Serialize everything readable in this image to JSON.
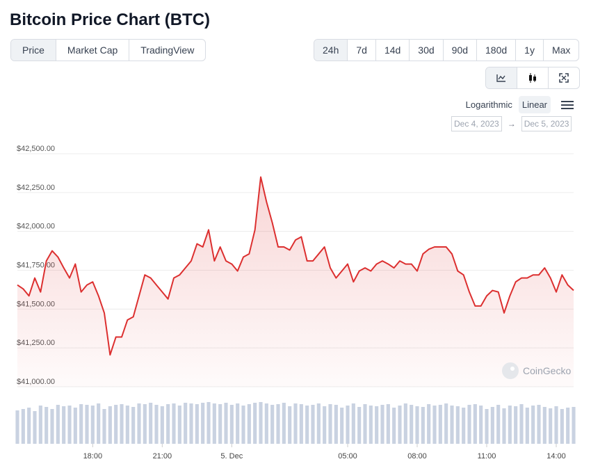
{
  "header": {
    "title": "Bitcoin Price Chart (BTC)"
  },
  "tabs": [
    "Price",
    "Market Cap",
    "TradingView"
  ],
  "active_tab": 0,
  "ranges": [
    "24h",
    "7d",
    "14d",
    "30d",
    "90d",
    "180d",
    "1y",
    "Max"
  ],
  "active_range": 0,
  "scale_options": [
    "Logarithmic",
    "Linear"
  ],
  "active_scale": 1,
  "date_range": {
    "from": "Dec 4, 2023",
    "separator": "→",
    "to": "Dec 5, 2023"
  },
  "watermark": "CoinGecko",
  "chart_data": {
    "type": "line",
    "color": "#dc2f2f",
    "x": [
      "2023-12-04T14:45",
      "2023-12-04T15:00",
      "2023-12-04T15:15",
      "2023-12-04T15:30",
      "2023-12-04T15:45",
      "2023-12-04T16:00",
      "2023-12-04T16:15",
      "2023-12-04T16:30",
      "2023-12-04T16:45",
      "2023-12-04T17:00",
      "2023-12-04T17:15",
      "2023-12-04T17:30",
      "2023-12-04T17:45",
      "2023-12-04T18:00",
      "2023-12-04T18:15",
      "2023-12-04T18:30",
      "2023-12-04T18:45",
      "2023-12-04T19:00",
      "2023-12-04T19:15",
      "2023-12-04T19:30",
      "2023-12-04T19:45",
      "2023-12-04T20:00",
      "2023-12-04T20:15",
      "2023-12-04T20:30",
      "2023-12-04T20:45",
      "2023-12-04T21:00",
      "2023-12-04T21:15",
      "2023-12-04T21:30",
      "2023-12-04T21:45",
      "2023-12-04T22:00",
      "2023-12-04T22:15",
      "2023-12-04T22:30",
      "2023-12-04T22:45",
      "2023-12-04T23:00",
      "2023-12-04T23:15",
      "2023-12-04T23:30",
      "2023-12-04T23:45",
      "2023-12-05T00:00",
      "2023-12-05T00:15",
      "2023-12-05T00:30",
      "2023-12-05T00:45",
      "2023-12-05T01:00",
      "2023-12-05T01:15",
      "2023-12-05T01:30",
      "2023-12-05T01:45",
      "2023-12-05T02:00",
      "2023-12-05T02:15",
      "2023-12-05T02:30",
      "2023-12-05T02:45",
      "2023-12-05T03:00",
      "2023-12-05T03:15",
      "2023-12-05T03:30",
      "2023-12-05T03:45",
      "2023-12-05T04:00",
      "2023-12-05T04:15",
      "2023-12-05T04:30",
      "2023-12-05T04:45",
      "2023-12-05T05:00",
      "2023-12-05T05:15",
      "2023-12-05T05:30",
      "2023-12-05T05:45",
      "2023-12-05T06:00",
      "2023-12-05T06:15",
      "2023-12-05T06:30",
      "2023-12-05T06:45",
      "2023-12-05T07:00",
      "2023-12-05T07:15",
      "2023-12-05T07:30",
      "2023-12-05T07:45",
      "2023-12-05T08:00",
      "2023-12-05T08:15",
      "2023-12-05T08:30",
      "2023-12-05T08:45",
      "2023-12-05T09:00",
      "2023-12-05T09:15",
      "2023-12-05T09:30",
      "2023-12-05T09:45",
      "2023-12-05T10:00",
      "2023-12-05T10:15",
      "2023-12-05T10:30",
      "2023-12-05T10:45",
      "2023-12-05T11:00",
      "2023-12-05T11:15",
      "2023-12-05T11:30",
      "2023-12-05T11:45",
      "2023-12-05T12:00",
      "2023-12-05T12:15",
      "2023-12-05T12:30",
      "2023-12-05T12:45",
      "2023-12-05T13:00",
      "2023-12-05T13:15",
      "2023-12-05T13:30",
      "2023-12-05T13:45",
      "2023-12-05T14:00",
      "2023-12-05T14:15",
      "2023-12-05T14:30",
      "2023-12-05T14:45"
    ],
    "values": [
      41655,
      41630,
      41585,
      41700,
      41610,
      41810,
      41875,
      41835,
      41765,
      41700,
      41790,
      41610,
      41655,
      41675,
      41585,
      41475,
      41205,
      41320,
      41320,
      41430,
      41450,
      41585,
      41720,
      41700,
      41655,
      41610,
      41565,
      41700,
      41720,
      41765,
      41810,
      41920,
      41900,
      42010,
      41810,
      41900,
      41810,
      41790,
      41745,
      41835,
      41855,
      42010,
      42350,
      42190,
      42055,
      41900,
      41900,
      41880,
      41945,
      41965,
      41810,
      41810,
      41855,
      41900,
      41765,
      41700,
      41745,
      41790,
      41675,
      41745,
      41765,
      41745,
      41790,
      41810,
      41790,
      41765,
      41810,
      41790,
      41790,
      41745,
      41855,
      41885,
      41900,
      41900,
      41900,
      41855,
      41745,
      41720,
      41610,
      41520,
      41520,
      41585,
      41620,
      41610,
      41475,
      41585,
      41675,
      41700,
      41700,
      41720,
      41720,
      41765,
      41700,
      41610,
      41720,
      41655,
      41620
    ],
    "volume": {
      "color": "#c9d2e1",
      "ylim": [
        0,
        65
      ],
      "values": [
        48,
        50,
        52,
        47,
        55,
        53,
        50,
        56,
        54,
        55,
        52,
        57,
        56,
        55,
        58,
        50,
        54,
        56,
        57,
        55,
        53,
        58,
        57,
        59,
        56,
        54,
        57,
        58,
        55,
        59,
        58,
        57,
        59,
        60,
        58,
        57,
        59,
        56,
        58,
        55,
        57,
        59,
        60,
        58,
        56,
        57,
        59,
        54,
        58,
        57,
        55,
        56,
        58,
        54,
        57,
        56,
        52,
        55,
        58,
        53,
        57,
        55,
        54,
        56,
        57,
        52,
        55,
        58,
        56,
        54,
        53,
        57,
        55,
        56,
        58,
        55,
        54,
        52,
        56,
        57,
        55,
        50,
        53,
        56,
        51,
        55,
        54,
        57,
        52,
        55,
        56,
        53,
        51,
        54,
        50,
        52,
        53
      ]
    },
    "xlim": [
      "2023-12-04T14:45",
      "2023-12-05T14:45"
    ],
    "xticks": [
      {
        "value": "2023-12-04T18:00",
        "label": "18:00"
      },
      {
        "value": "2023-12-04T21:00",
        "label": "21:00"
      },
      {
        "value": "2023-12-05T00:00",
        "label": "5. Dec"
      },
      {
        "value": "2023-12-05T05:00",
        "label": "05:00"
      },
      {
        "value": "2023-12-05T08:00",
        "label": "08:00"
      },
      {
        "value": "2023-12-05T11:00",
        "label": "11:00"
      },
      {
        "value": "2023-12-05T14:00",
        "label": "14:00"
      }
    ],
    "ylim": [
      41000,
      42500
    ],
    "yticks": [
      {
        "value": 41000,
        "label": "$41,000.00"
      },
      {
        "value": 41250,
        "label": "$41,250.00"
      },
      {
        "value": 41500,
        "label": "$41,500.00"
      },
      {
        "value": 41750,
        "label": "$41,750.00"
      },
      {
        "value": 42000,
        "label": "$42,000.00"
      },
      {
        "value": 42250,
        "label": "$42,250.00"
      },
      {
        "value": 42500,
        "label": "$42,500.00"
      }
    ],
    "grid": true
  }
}
